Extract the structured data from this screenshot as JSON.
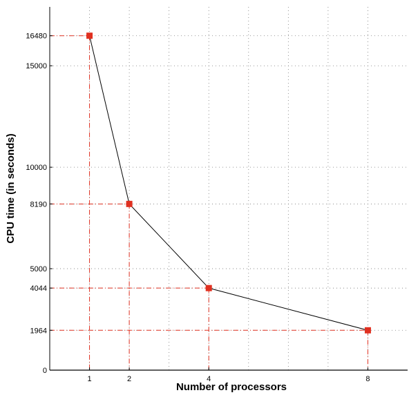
{
  "chart_data": {
    "type": "line",
    "title": "",
    "xlabel": "Number of  processors",
    "ylabel": "CPU time (in seconds)",
    "x": [
      1,
      2,
      4,
      8
    ],
    "series": [
      {
        "values": [
          16480,
          8190,
          4044,
          1964
        ]
      }
    ],
    "xlim": [
      0,
      9
    ],
    "ylim": [
      0,
      17900
    ],
    "x_ticks": [
      1,
      2,
      4,
      8
    ],
    "x_tick_labels": [
      "1",
      "2",
      "4",
      "8"
    ],
    "x_grid": [
      1,
      2,
      3,
      4,
      5,
      6,
      7,
      8
    ],
    "y_ticks": [
      0,
      1964,
      4044,
      5000,
      8190,
      10000,
      15000,
      16480
    ],
    "y_tick_labels": [
      "0",
      "1964",
      "4044",
      "5000",
      "8190",
      "10000",
      "15000",
      "16480"
    ],
    "y_grid": [
      0,
      1964,
      4044,
      5000,
      8190,
      10000,
      15000,
      16480
    ],
    "grid": true,
    "reference_lines": true,
    "colors": {
      "line": "#000000",
      "marker": "#e03020",
      "reference": "#e03020",
      "grid": "#777777"
    }
  }
}
